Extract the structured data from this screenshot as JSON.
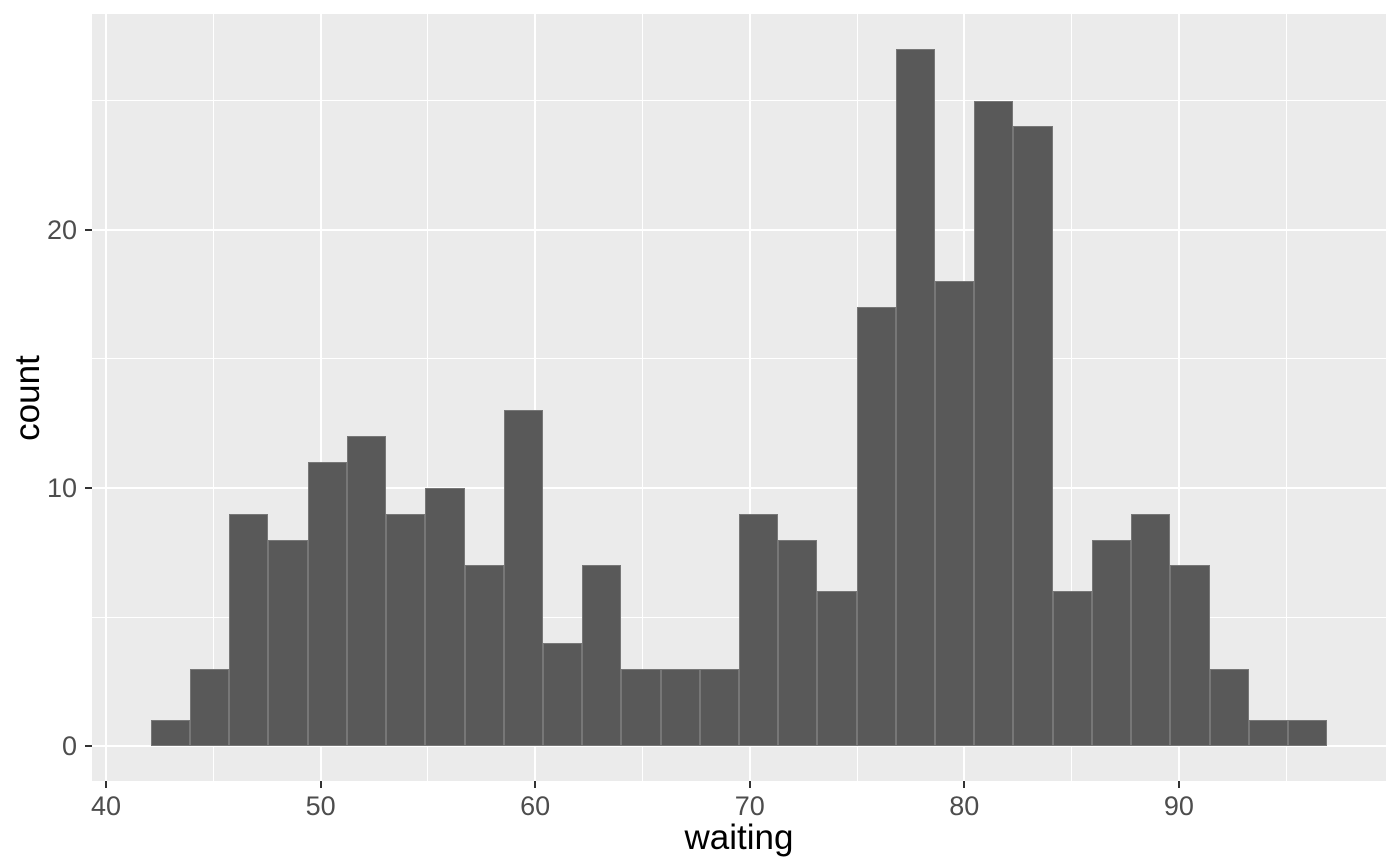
{
  "chart_data": {
    "type": "histogram",
    "title": "",
    "xlabel": "waiting",
    "ylabel": "count",
    "bin_start": 42.0862,
    "bin_width": 1.82759,
    "counts": [
      1,
      3,
      9,
      8,
      11,
      12,
      9,
      10,
      7,
      13,
      4,
      7,
      3,
      3,
      3,
      9,
      8,
      6,
      17,
      27,
      18,
      25,
      24,
      6,
      8,
      9,
      7,
      3,
      1,
      1
    ],
    "n_total": 272,
    "xlim": [
      39.345,
      99.655
    ],
    "ylim": [
      -1.35,
      28.35
    ],
    "x_major_ticks": [
      40,
      50,
      60,
      70,
      80,
      90
    ],
    "x_tick_labels": [
      "40",
      "50",
      "60",
      "70",
      "80",
      "90"
    ],
    "x_minor_ticks": [
      45,
      55,
      65,
      75,
      85,
      95
    ],
    "y_major_ticks": [
      0,
      10,
      20
    ],
    "y_tick_labels": [
      "0",
      "10",
      "20"
    ],
    "y_minor_ticks": [
      5,
      15,
      25
    ],
    "grid": "major+minor",
    "legend_position": "none",
    "colors": {
      "bar_fill": "#595959",
      "bar_edge_highlight": "rgba(255,255,255,0.18)",
      "panel_bg": "#EBEBEB",
      "grid_major": "#FFFFFF",
      "grid_minor": "#FFFFFF",
      "tick_mark": "#333333",
      "tick_label": "#4D4D4D",
      "axis_title": "#000000",
      "figure_bg": "#FFFFFF"
    }
  }
}
